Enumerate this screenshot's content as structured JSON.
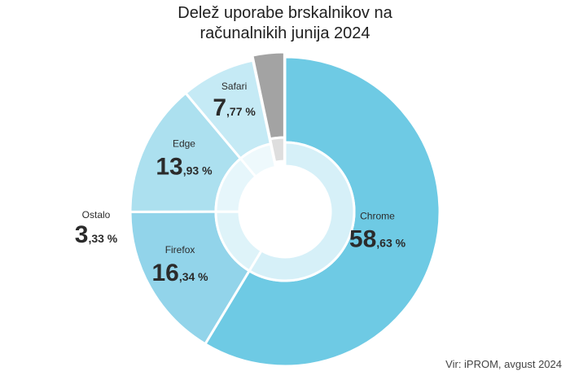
{
  "chart_data": {
    "type": "pie",
    "title_line1": "Delež uporabe brskalnikov na",
    "title_line2": "računalnikih junija 2024",
    "source": "Vir: iPROM, avgust 2024",
    "slices": [
      {
        "name": "Chrome",
        "value": 58.63,
        "int": "58",
        "dec": ",63 %",
        "color": "#6ecae4",
        "inner_color": "#d6f0f8"
      },
      {
        "name": "Firefox",
        "value": 16.34,
        "int": "16",
        "dec": ",34 %",
        "color": "#92d4ea",
        "inner_color": "#def3f9"
      },
      {
        "name": "Edge",
        "value": 13.93,
        "int": "13",
        "dec": ",93 %",
        "color": "#ace0ef",
        "inner_color": "#e6f6fb"
      },
      {
        "name": "Safari",
        "value": 7.77,
        "int": "7",
        "dec": ",77 %",
        "color": "#c5eaf5",
        "inner_color": "#eef9fc"
      },
      {
        "name": "Ostalo",
        "value": 3.33,
        "int": "3",
        "dec": ",33 %",
        "color": "#a3a3a3",
        "inner_color": "#dedede"
      }
    ]
  }
}
